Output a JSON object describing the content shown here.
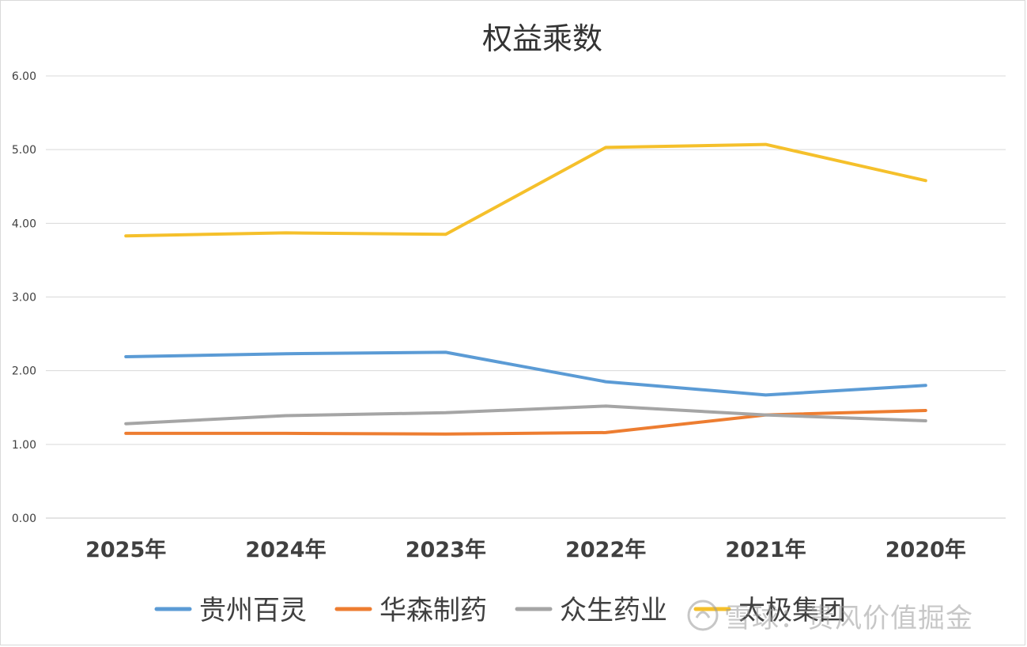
{
  "chart_data": {
    "type": "line",
    "title": "权益乘数",
    "xlabel": "",
    "ylabel": "",
    "categories": [
      "2025年",
      "2024年",
      "2023年",
      "2022年",
      "2021年",
      "2020年"
    ],
    "ylim": [
      0,
      6
    ],
    "yticks": [
      "0.00",
      "1.00",
      "2.00",
      "3.00",
      "4.00",
      "5.00",
      "6.00"
    ],
    "grid": true,
    "legend_position": "bottom",
    "series": [
      {
        "name": "贵州百灵",
        "color": "#5b9bd5",
        "values": [
          2.19,
          2.23,
          2.25,
          1.85,
          1.67,
          1.8
        ]
      },
      {
        "name": "华森制药",
        "color": "#ed7d31",
        "values": [
          1.15,
          1.15,
          1.14,
          1.16,
          1.4,
          1.46
        ]
      },
      {
        "name": "众生药业",
        "color": "#a5a5a5",
        "values": [
          1.28,
          1.39,
          1.43,
          1.52,
          1.4,
          1.32
        ]
      },
      {
        "name": "太极集团",
        "color": "#f5c02b",
        "values": [
          3.83,
          3.87,
          3.85,
          5.03,
          5.07,
          4.58
        ]
      }
    ]
  },
  "watermark": {
    "text": "雪球：贵风价值掘金",
    "icon": "snowball-logo-icon"
  }
}
